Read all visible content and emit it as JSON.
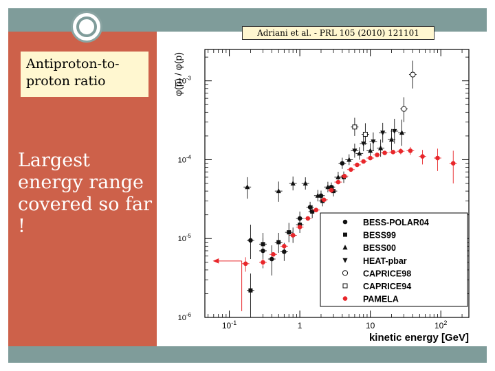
{
  "slide": {
    "reference": "Adriani et al. - PRL 105 (2010) 121101",
    "subtitle": "Antiproton-to-proton ratio",
    "body": "Largest energy range covered so far !"
  },
  "colors": {
    "band": "#7f9c9a",
    "left_panel": "#cd614a",
    "highlight_box": "#fff7d0",
    "pamela": "#e8262a",
    "other": "#111111"
  },
  "chart_data": {
    "type": "scatter",
    "xlabel": "kinetic energy [GeV]",
    "ylabel": "φ(p̅) / φ(p)",
    "xscale": "log",
    "yscale": "log",
    "xlim": [
      0.045,
      250
    ],
    "ylim": [
      1e-06,
      0.0025
    ],
    "xticks": [
      {
        "v": 0.1,
        "label": "10",
        "exp": "-1"
      },
      {
        "v": 1,
        "label": "1",
        "exp": ""
      },
      {
        "v": 10,
        "label": "10",
        "exp": ""
      },
      {
        "v": 100,
        "label": "10",
        "exp": "2"
      }
    ],
    "yticks": [
      {
        "v": 1e-06,
        "label": "10",
        "exp": "-6"
      },
      {
        "v": 1e-05,
        "label": "10",
        "exp": "-5"
      },
      {
        "v": 0.0001,
        "label": "10",
        "exp": "-4"
      },
      {
        "v": 0.001,
        "label": "10",
        "exp": "-3"
      }
    ],
    "legend_position": "bottom-right",
    "series": [
      {
        "name": "BESS-POLAR04",
        "marker": "circle",
        "color": "#111111",
        "points": [
          [
            0.2,
            9.5e-06,
            5.5e-06,
            1.5e-05
          ],
          [
            0.3,
            7e-06,
            4.2e-06,
            1.02e-05
          ],
          [
            0.4,
            5.5e-06,
            3.4e-06,
            8.2e-06
          ],
          [
            0.6,
            6.8e-06,
            5.2e-06,
            8.8e-06
          ],
          [
            0.8,
            1.1e-05,
            8.8e-06,
            1.38e-05
          ],
          [
            1.0,
            1.8e-05,
            1.48e-05,
            2.2e-05
          ],
          [
            1.4,
            2.5e-05,
            2.14e-05,
            2.92e-05
          ],
          [
            2.0,
            3.5e-05,
            3.05e-05,
            4.05e-05
          ],
          [
            2.8,
            4.5e-05,
            3.94e-05,
            5.14e-05
          ],
          [
            4.0,
            9e-05,
            7.65e-05,
            0.000106
          ]
        ]
      },
      {
        "name": "BESS99",
        "marker": "square",
        "color": "#111111",
        "points": [
          [
            0.2,
            2.2e-06,
            1.1e-06,
            3.6e-06
          ],
          [
            0.3,
            8.5e-06,
            5.8e-06,
            1.18e-05
          ],
          [
            0.5,
            9e-06,
            6.6e-06,
            1.18e-05
          ],
          [
            0.7,
            1.2e-05,
            9e-06,
            1.58e-05
          ],
          [
            1.0,
            1.5e-05,
            1.18e-05,
            1.92e-05
          ],
          [
            1.5,
            2.2e-05,
            1.82e-05,
            2.65e-05
          ],
          [
            2.1,
            3e-05,
            2.56e-05,
            3.52e-05
          ],
          [
            3.0,
            4e-05,
            3.42e-05,
            4.68e-05
          ],
          [
            4.2,
            6e-05,
            5.08e-05,
            7.08e-05
          ]
        ]
      },
      {
        "name": "BESS00",
        "marker": "triangle-up",
        "color": "#111111",
        "points": [
          [
            0.18,
            4.5e-05,
            3.2e-05,
            6e-05
          ],
          [
            0.5,
            4e-05,
            2.92e-05,
            5.28e-05
          ],
          [
            0.8,
            5e-05,
            4.08e-05,
            6.12e-05
          ],
          [
            1.2,
            5e-05,
            4.18e-05,
            5.98e-05
          ],
          [
            1.8,
            3.5e-05,
            2.96e-05,
            4.14e-05
          ],
          [
            2.5,
            4.5e-05,
            3.86e-05,
            5.24e-05
          ],
          [
            3.5,
            6e-05,
            5.12e-05,
            7.03e-05
          ],
          [
            5.0,
            0.0001,
            8.55e-05,
            0.000117
          ],
          [
            7.0,
            0.00012,
            0.0001,
            0.000144
          ],
          [
            10.0,
            0.00013,
            0.000104,
            0.000162
          ],
          [
            14.0,
            0.00014,
            0.000109,
            0.00018
          ],
          [
            20.0,
            0.00018,
            0.000132,
            0.000245
          ],
          [
            28.0,
            0.00022,
            0.00015,
            0.000322
          ]
        ]
      },
      {
        "name": "HEAT-pbar",
        "marker": "triangle-down",
        "color": "#111111",
        "points": [
          [
            6.0,
            0.00013,
            0.000106,
            0.00016
          ],
          [
            8.0,
            0.00016,
            0.000128,
            0.0002
          ],
          [
            11.0,
            0.00017,
            0.00013,
            0.000222
          ],
          [
            15.0,
            0.00022,
            0.000165,
            0.000293
          ],
          [
            22.0,
            0.00023,
            0.00016,
            0.00033
          ]
        ]
      },
      {
        "name": "CAPRICE98",
        "marker": "circle-open",
        "color": "#111111",
        "points": [
          [
            30.0,
            0.00044,
            0.0003,
            0.00062
          ],
          [
            40.0,
            0.0012,
            0.0008,
            0.0018
          ]
        ]
      },
      {
        "name": "CAPRICE94",
        "marker": "square-open",
        "color": "#111111",
        "points": [
          [
            6.0,
            0.00026,
            0.0002,
            0.00034
          ],
          [
            8.5,
            0.00021,
            0.000155,
            0.00029
          ]
        ]
      },
      {
        "name": "PAMELA",
        "marker": "circle",
        "color": "#e8262a",
        "points": [
          [
            0.17,
            4.8e-06,
            3.8e-06,
            5.8e-06
          ],
          [
            0.3,
            5e-06,
            4.5e-06,
            5.5e-06
          ],
          [
            0.42,
            6.3e-06,
            5.9e-06,
            6.7e-06
          ],
          [
            0.6,
            8e-06,
            7.6e-06,
            8.4e-06
          ],
          [
            0.8,
            1.1e-05,
            1.06e-05,
            1.14e-05
          ],
          [
            1.0,
            1.4e-05,
            1.36e-05,
            1.44e-05
          ],
          [
            1.3,
            1.8e-05,
            1.76e-05,
            1.84e-05
          ],
          [
            1.7,
            2.3e-05,
            2.25e-05,
            2.35e-05
          ],
          [
            2.2,
            3.1e-05,
            3.03e-05,
            3.17e-05
          ],
          [
            2.8,
            4.1e-05,
            4.01e-05,
            4.19e-05
          ],
          [
            3.5,
            5.2e-05,
            5.09e-05,
            5.31e-05
          ],
          [
            4.3,
            6.2e-05,
            6.05e-05,
            6.35e-05
          ],
          [
            5.3,
            7.5e-05,
            7.32e-05,
            7.68e-05
          ],
          [
            6.5,
            8.6e-05,
            8.4e-05,
            8.8e-05
          ],
          [
            8.0,
            9.5e-05,
            9.26e-05,
            9.74e-05
          ],
          [
            10.0,
            0.000105,
            0.000102,
            0.000108
          ],
          [
            12.5,
            0.000115,
            0.000111,
            0.000119
          ],
          [
            16.0,
            0.000122,
            0.000117,
            0.000127
          ],
          [
            21.0,
            0.000125,
            0.000118,
            0.000132
          ],
          [
            27.0,
            0.000128,
            0.000117,
            0.000139
          ],
          [
            37.0,
            0.00013,
            0.000115,
            0.000145
          ],
          [
            55.0,
            0.00011,
            8.7e-05,
            0.000133
          ],
          [
            90.0,
            0.000105,
            7.2e-05,
            0.000138
          ],
          [
            150.0,
            9e-05,
            5e-05,
            0.00013
          ]
        ]
      }
    ],
    "annotations": [
      {
        "type": "upper-limit-arrow",
        "color": "#e8262a",
        "x_from": 0.06,
        "x_to": 0.15,
        "y": 5.2e-06,
        "y_low": 1.2e-06,
        "y_high": 5.2e-06
      }
    ]
  }
}
